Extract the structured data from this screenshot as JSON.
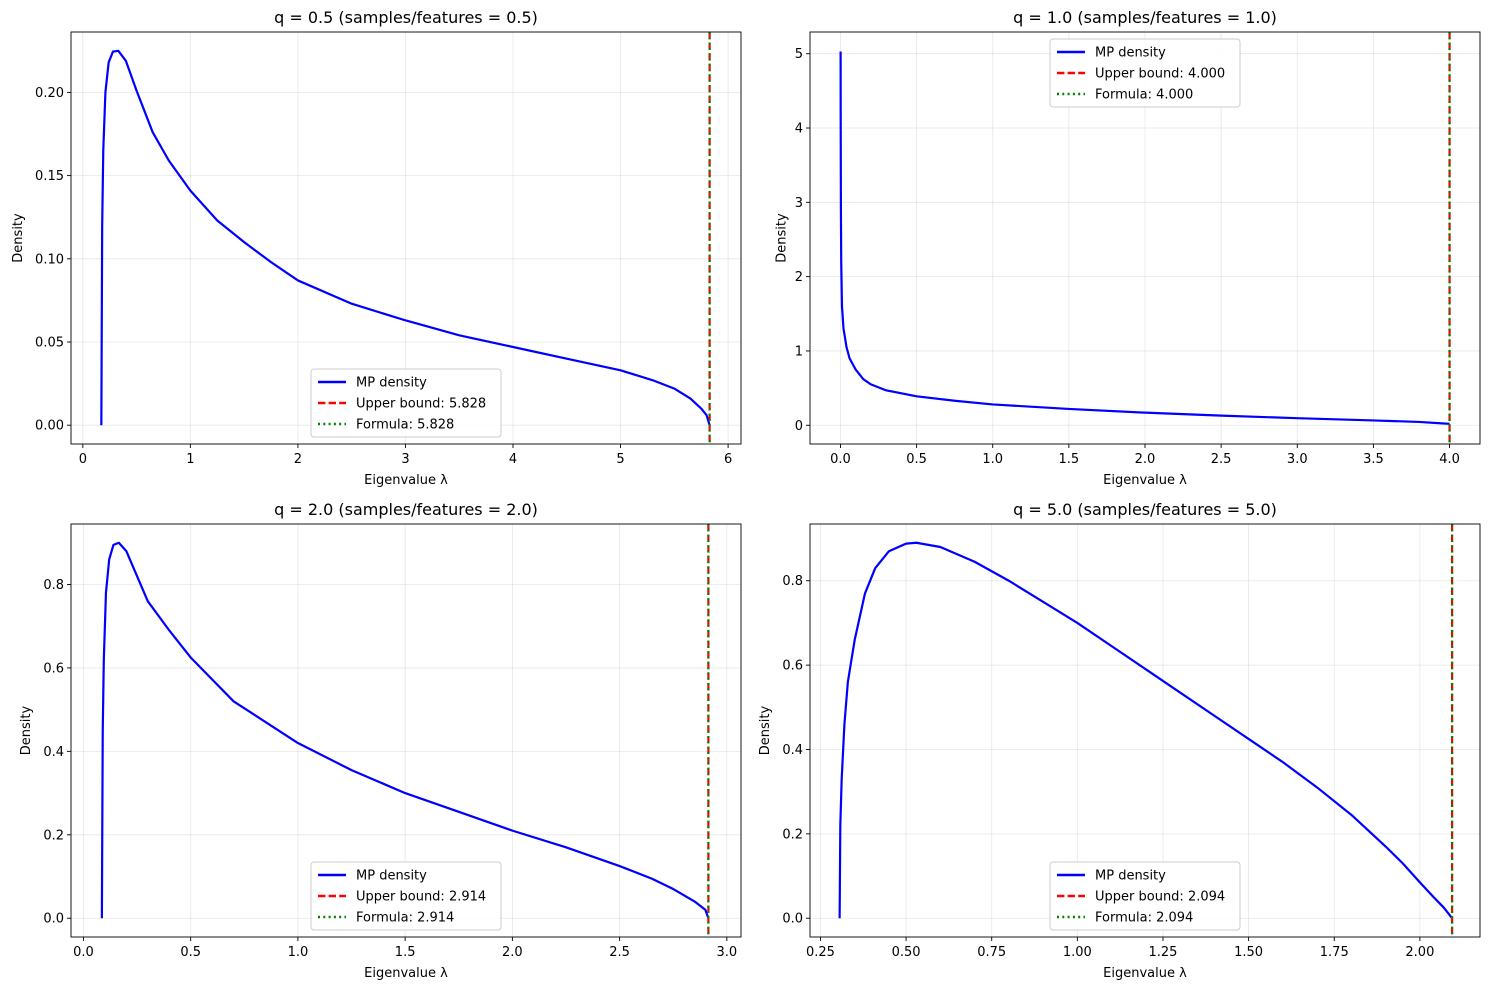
{
  "chart_data": [
    {
      "type": "line",
      "title": "q = 0.5 (samples/features = 0.5)",
      "xlabel": "Eigenvalue λ",
      "ylabel": "Density",
      "xlim": [
        -0.11,
        6.12
      ],
      "ylim": [
        -0.0113,
        0.2363
      ],
      "xticks": [
        0,
        1,
        2,
        3,
        4,
        5,
        6
      ],
      "xtick_labels": [
        "0",
        "1",
        "2",
        "3",
        "4",
        "5",
        "6"
      ],
      "yticks": [
        0,
        0.05,
        0.1,
        0.15,
        0.2
      ],
      "ytick_labels": [
        "0.00",
        "0.05",
        "0.10",
        "0.15",
        "0.20"
      ],
      "grid": true,
      "legend_position": "lower center",
      "series": [
        {
          "name": "MP density",
          "color": "#0000ff",
          "style": "solid",
          "x": [
            0.172,
            0.18,
            0.19,
            0.21,
            0.24,
            0.28,
            0.33,
            0.4,
            0.5,
            0.65,
            0.8,
            1.0,
            1.25,
            1.5,
            1.75,
            2.0,
            2.5,
            3.0,
            3.5,
            4.0,
            4.5,
            5.0,
            5.3,
            5.5,
            5.65,
            5.75,
            5.8,
            5.828
          ],
          "y": [
            0.0,
            0.12,
            0.165,
            0.2,
            0.218,
            0.2245,
            0.225,
            0.219,
            0.201,
            0.176,
            0.159,
            0.141,
            0.123,
            0.11,
            0.098,
            0.087,
            0.073,
            0.063,
            0.054,
            0.047,
            0.04,
            0.033,
            0.027,
            0.022,
            0.016,
            0.01,
            0.006,
            0.0
          ]
        },
        {
          "name": "Upper bound: 5.828",
          "color": "#ff0000",
          "style": "dashed",
          "vline": 5.828
        },
        {
          "name": "Formula: 5.828",
          "color": "#008000",
          "style": "dotted",
          "vline": 5.828
        }
      ]
    },
    {
      "type": "line",
      "title": "q = 1.0 (samples/features = 1.0)",
      "xlabel": "Eigenvalue λ",
      "ylabel": "Density",
      "xlim": [
        -0.2,
        4.2
      ],
      "ylim": [
        -0.252,
        5.292
      ],
      "xticks": [
        0.0,
        0.5,
        1.0,
        1.5,
        2.0,
        2.5,
        3.0,
        3.5,
        4.0
      ],
      "xtick_labels": [
        "0.0",
        "0.5",
        "1.0",
        "1.5",
        "2.0",
        "2.5",
        "3.0",
        "3.5",
        "4.0"
      ],
      "yticks": [
        0,
        1,
        2,
        3,
        4,
        5
      ],
      "ytick_labels": [
        "0",
        "1",
        "2",
        "3",
        "4",
        "5"
      ],
      "grid": true,
      "legend_position": "upper center",
      "series": [
        {
          "name": "MP density",
          "color": "#0000ff",
          "style": "solid",
          "x": [
            0.001,
            0.0015,
            0.003,
            0.005,
            0.01,
            0.02,
            0.04,
            0.06,
            0.1,
            0.15,
            0.2,
            0.3,
            0.5,
            0.75,
            1.0,
            1.5,
            2.0,
            2.5,
            3.0,
            3.5,
            3.8,
            3.95,
            4.0
          ],
          "y": [
            5.03,
            4.2,
            2.9,
            2.2,
            1.6,
            1.3,
            1.05,
            0.9,
            0.75,
            0.62,
            0.55,
            0.47,
            0.39,
            0.33,
            0.28,
            0.22,
            0.17,
            0.13,
            0.095,
            0.065,
            0.045,
            0.025,
            0.02
          ]
        },
        {
          "name": "Upper bound: 4.000",
          "color": "#ff0000",
          "style": "dashed",
          "vline": 4.0
        },
        {
          "name": "Formula: 4.000",
          "color": "#008000",
          "style": "dotted",
          "vline": 4.0
        }
      ]
    },
    {
      "type": "line",
      "title": "q = 2.0 (samples/features = 2.0)",
      "xlabel": "Eigenvalue λ",
      "ylabel": "Density",
      "xlim": [
        -0.058,
        3.066
      ],
      "ylim": [
        -0.045,
        0.945
      ],
      "xticks": [
        0.0,
        0.5,
        1.0,
        1.5,
        2.0,
        2.5,
        3.0
      ],
      "xtick_labels": [
        "0.0",
        "0.5",
        "1.0",
        "1.5",
        "2.0",
        "2.5",
        "3.0"
      ],
      "yticks": [
        0,
        0.2,
        0.4,
        0.6,
        0.8
      ],
      "ytick_labels": [
        "0.0",
        "0.2",
        "0.4",
        "0.6",
        "0.8"
      ],
      "grid": true,
      "legend_position": "lower center",
      "series": [
        {
          "name": "MP density",
          "color": "#0000ff",
          "style": "solid",
          "x": [
            0.086,
            0.09,
            0.095,
            0.105,
            0.12,
            0.14,
            0.165,
            0.2,
            0.25,
            0.3,
            0.4,
            0.5,
            0.7,
            1.0,
            1.25,
            1.5,
            1.75,
            2.0,
            2.25,
            2.5,
            2.65,
            2.75,
            2.85,
            2.9,
            2.914
          ],
          "y": [
            0.0,
            0.45,
            0.62,
            0.78,
            0.86,
            0.895,
            0.9,
            0.88,
            0.82,
            0.76,
            0.69,
            0.625,
            0.52,
            0.42,
            0.355,
            0.3,
            0.255,
            0.21,
            0.17,
            0.125,
            0.095,
            0.07,
            0.04,
            0.02,
            0.0
          ]
        },
        {
          "name": "Upper bound: 2.914",
          "color": "#ff0000",
          "style": "dashed",
          "vline": 2.914
        },
        {
          "name": "Formula: 2.914",
          "color": "#008000",
          "style": "dotted",
          "vline": 2.914
        }
      ]
    },
    {
      "type": "line",
      "title": "q = 5.0 (samples/features = 5.0)",
      "xlabel": "Eigenvalue λ",
      "ylabel": "Density",
      "xlim": [
        0.2195,
        2.1755
      ],
      "ylim": [
        -0.0445,
        0.9345
      ],
      "xticks": [
        0.25,
        0.5,
        0.75,
        1.0,
        1.25,
        1.5,
        1.75,
        2.0
      ],
      "xtick_labels": [
        "0.25",
        "0.50",
        "0.75",
        "1.00",
        "1.25",
        "1.50",
        "1.75",
        "2.00"
      ],
      "yticks": [
        0,
        0.2,
        0.4,
        0.6,
        0.8
      ],
      "ytick_labels": [
        "0.0",
        "0.2",
        "0.4",
        "0.6",
        "0.8"
      ],
      "grid": true,
      "legend_position": "lower center",
      "series": [
        {
          "name": "MP density",
          "color": "#0000ff",
          "style": "solid",
          "x": [
            0.306,
            0.308,
            0.312,
            0.32,
            0.33,
            0.35,
            0.38,
            0.41,
            0.45,
            0.5,
            0.53,
            0.6,
            0.7,
            0.8,
            0.9,
            1.0,
            1.1,
            1.2,
            1.3,
            1.4,
            1.5,
            1.6,
            1.7,
            1.8,
            1.9,
            1.95,
            2.0,
            2.04,
            2.07,
            2.094
          ],
          "y": [
            0.0,
            0.22,
            0.33,
            0.46,
            0.56,
            0.66,
            0.77,
            0.83,
            0.87,
            0.888,
            0.89,
            0.88,
            0.845,
            0.8,
            0.75,
            0.7,
            0.645,
            0.59,
            0.535,
            0.48,
            0.425,
            0.37,
            0.31,
            0.245,
            0.17,
            0.13,
            0.085,
            0.05,
            0.025,
            0.0
          ]
        },
        {
          "name": "Upper bound: 2.094",
          "color": "#ff0000",
          "style": "dashed",
          "vline": 2.094
        },
        {
          "name": "Formula: 2.094",
          "color": "#008000",
          "style": "dotted",
          "vline": 2.094
        }
      ]
    }
  ]
}
